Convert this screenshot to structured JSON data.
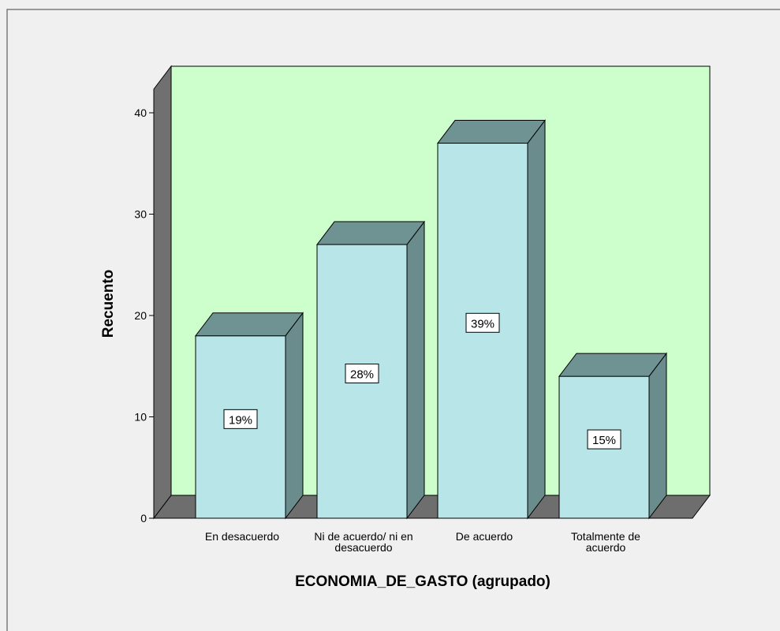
{
  "chart_data": {
    "type": "bar",
    "style": "3d",
    "title": "",
    "xlabel": "ECONOMIA_DE_GASTO (agrupado)",
    "ylabel": "Recuento",
    "ylim": [
      0,
      42
    ],
    "yticks": [
      0,
      10,
      20,
      30,
      40
    ],
    "grid": false,
    "legend": "none",
    "categories": [
      [
        "En desacuerdo"
      ],
      [
        "Ni de acuerdo/ ni en",
        "desacuerdo"
      ],
      [
        "De acuerdo"
      ],
      [
        "Totalmente de",
        "acuerdo"
      ]
    ],
    "values": [
      18,
      27,
      37,
      14
    ],
    "data_labels": [
      "19%",
      "28%",
      "39%",
      "15%"
    ]
  },
  "colors": {
    "background": "#f0f0f0",
    "plot_back_wall": "#ccffcc",
    "wall_side": "#707070",
    "floor": "#6e6e6e",
    "bar_front": "#b7e5e8",
    "bar_side": "#6a8c8c",
    "bar_top": "#6f9393",
    "outline": "#000000",
    "label_box": "#ffffff"
  }
}
